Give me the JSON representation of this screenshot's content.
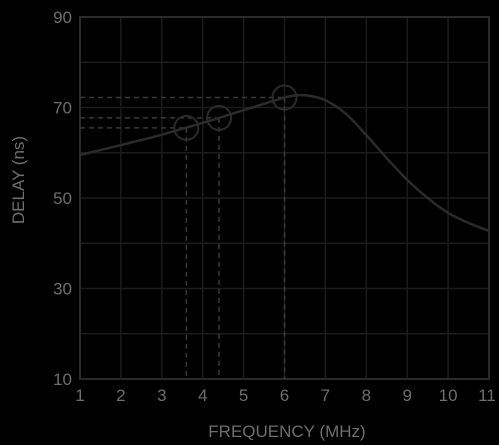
{
  "chart_data": {
    "type": "line",
    "title": "",
    "xlabel": "FREQUENCY (MHz)",
    "ylabel": "DELAY (ns)",
    "xlim": [
      1,
      11
    ],
    "ylim": [
      10,
      90
    ],
    "x_ticks": [
      "1",
      "2",
      "3",
      "4",
      "5",
      "6",
      "7",
      "8",
      "9",
      "10",
      "11"
    ],
    "y_ticks": [
      "10",
      "30",
      "50",
      "70",
      "90"
    ],
    "grid": true,
    "series": [
      {
        "x": [
          1,
          1.5,
          2,
          2.5,
          3,
          3.5,
          4,
          4.4,
          5,
          5.5,
          6,
          6.3,
          6.6,
          7,
          7.5,
          8,
          8.5,
          9,
          9.5,
          10,
          10.5,
          11
        ],
        "y": [
          59.5,
          60.6,
          61.7,
          62.8,
          64.0,
          65.3,
          66.6,
          67.7,
          69.4,
          70.8,
          72.2,
          72.7,
          72.6,
          71.6,
          68.6,
          63.9,
          58.8,
          54.0,
          50.0,
          46.7,
          44.5,
          42.7
        ]
      }
    ],
    "annotations": [
      {
        "x": 3.6,
        "y": 65.5
      },
      {
        "x": 4.4,
        "y": 67.7
      },
      {
        "x": 6.0,
        "y": 72.2
      }
    ],
    "colors": {
      "background": "#000000",
      "grid": "#1c1c1c",
      "axis": "#2a2a2a",
      "line": "#2b2b2b",
      "guide": "#3a3a3a",
      "text": "#6e6e6e"
    }
  }
}
